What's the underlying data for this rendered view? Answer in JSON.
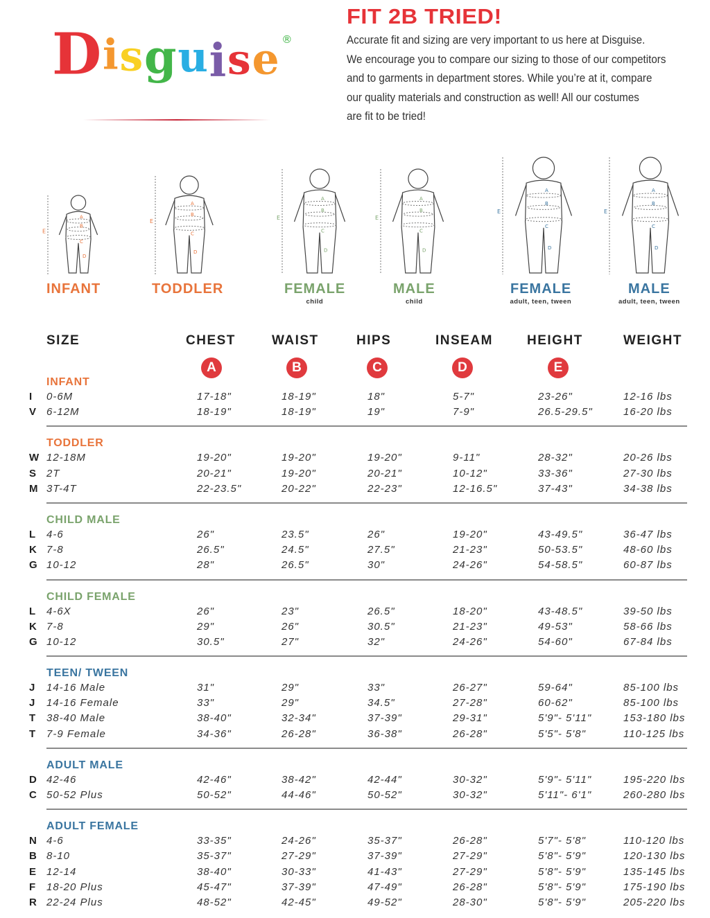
{
  "brand": {
    "logo_text": "Disguise",
    "logo_letters": [
      "D",
      "i",
      "s",
      "g",
      "u",
      "i",
      "s",
      "e"
    ],
    "logo_colors": [
      "#e63338",
      "#f4972f",
      "#f9d023",
      "#43b649",
      "#29aee3",
      "#7a5ca8",
      "#e63338",
      "#f4972f"
    ],
    "registered": "®"
  },
  "headline": "FIT 2B TRIED!",
  "intro_lines": [
    "Accurate fit and sizing are very important to us here at Disguise.",
    "We encourage you to compare our sizing to those of our competitors",
    "and to garments in department stores. While you’re at it, compare",
    "our quality materials and construction as well! All our costumes",
    "are fit to be tried!"
  ],
  "colors": {
    "orange": "#e8743b",
    "green": "#7aa36c",
    "blue": "#3a75a0",
    "red": "#e03a3e"
  },
  "figures": [
    {
      "label": "INFANT",
      "sub": "",
      "color": "#e8743b"
    },
    {
      "label": "TODDLER",
      "sub": "",
      "color": "#e8743b"
    },
    {
      "label": "FEMALE",
      "sub": "child",
      "color": "#7aa36c"
    },
    {
      "label": "MALE",
      "sub": "child",
      "color": "#7aa36c"
    },
    {
      "label": "FEMALE",
      "sub": "adult, teen, tween",
      "color": "#3a75a0"
    },
    {
      "label": "MALE",
      "sub": "adult, teen, tween",
      "color": "#3a75a0"
    }
  ],
  "columns": [
    {
      "label": "SIZE",
      "marker": ""
    },
    {
      "label": "CHEST",
      "marker": "A"
    },
    {
      "label": "WAIST",
      "marker": "B"
    },
    {
      "label": "HIPS",
      "marker": "C"
    },
    {
      "label": "INSEAM",
      "marker": "D"
    },
    {
      "label": "HEIGHT",
      "marker": "E"
    },
    {
      "label": "WEIGHT",
      "marker": ""
    }
  ],
  "sections": [
    {
      "title": "INFANT",
      "color": "#e8743b",
      "rows": [
        [
          "I",
          "0-6M",
          "17-18\"",
          "18-19\"",
          "18\"",
          "5-7\"",
          "23-26\"",
          "12-16 lbs"
        ],
        [
          "V",
          "6-12M",
          "18-19\"",
          "18-19\"",
          "19\"",
          "7-9\"",
          "26.5-29.5\"",
          "16-20 lbs"
        ]
      ]
    },
    {
      "title": "TODDLER",
      "color": "#e8743b",
      "rows": [
        [
          "W",
          "12-18M",
          "19-20\"",
          "19-20\"",
          "19-20\"",
          "9-11\"",
          "28-32\"",
          "20-26 lbs"
        ],
        [
          "S",
          "2T",
          "20-21\"",
          "19-20\"",
          "20-21\"",
          "10-12\"",
          "33-36\"",
          "27-30 lbs"
        ],
        [
          "M",
          "3T-4T",
          "22-23.5\"",
          "20-22\"",
          "22-23\"",
          "12-16.5\"",
          "37-43\"",
          "34-38 lbs"
        ]
      ]
    },
    {
      "title": "CHILD MALE",
      "color": "#7aa36c",
      "rows": [
        [
          "L",
          "4-6",
          "26\"",
          "23.5\"",
          "26\"",
          "19-20\"",
          "43-49.5\"",
          "36-47 lbs"
        ],
        [
          "K",
          "7-8",
          "26.5\"",
          "24.5\"",
          "27.5\"",
          "21-23\"",
          "50-53.5\"",
          "48-60 lbs"
        ],
        [
          "G",
          "10-12",
          "28\"",
          "26.5\"",
          "30\"",
          "24-26\"",
          "54-58.5\"",
          "60-87 lbs"
        ]
      ]
    },
    {
      "title": "CHILD FEMALE",
      "color": "#7aa36c",
      "rows": [
        [
          "L",
          "4-6X",
          "26\"",
          "23\"",
          "26.5\"",
          "18-20\"",
          "43-48.5\"",
          "39-50 lbs"
        ],
        [
          "K",
          "7-8",
          "29\"",
          "26\"",
          "30.5\"",
          "21-23\"",
          "49-53\"",
          "58-66 lbs"
        ],
        [
          "G",
          "10-12",
          "30.5\"",
          "27\"",
          "32\"",
          "24-26\"",
          "54-60\"",
          "67-84 lbs"
        ]
      ]
    },
    {
      "title": "TEEN/ TWEEN",
      "color": "#3a75a0",
      "rows": [
        [
          "J",
          "14-16 Male",
          "31\"",
          "29\"",
          "33\"",
          "26-27\"",
          "59-64\"",
          "85-100 lbs"
        ],
        [
          "J",
          "14-16 Female",
          "33\"",
          "29\"",
          "34.5\"",
          "27-28\"",
          "60-62\"",
          "85-100 lbs"
        ],
        [
          "T",
          "38-40 Male",
          "38-40\"",
          "32-34\"",
          "37-39\"",
          "29-31\"",
          "5'9\"- 5'11\"",
          "153-180 lbs"
        ],
        [
          "T",
          "7-9 Female",
          "34-36\"",
          "26-28\"",
          "36-38\"",
          "26-28\"",
          "5'5\"- 5'8\"",
          "110-125 lbs"
        ]
      ]
    },
    {
      "title": "ADULT MALE",
      "color": "#3a75a0",
      "rows": [
        [
          "D",
          "42-46",
          "42-46\"",
          "38-42\"",
          "42-44\"",
          "30-32\"",
          "5'9\"- 5'11\"",
          "195-220 lbs"
        ],
        [
          "C",
          "50-52 Plus",
          "50-52\"",
          "44-46\"",
          "50-52\"",
          "30-32\"",
          "5'11\"- 6'1\"",
          "260-280 lbs"
        ]
      ]
    },
    {
      "title": "ADULT FEMALE",
      "color": "#3a75a0",
      "rows": [
        [
          "N",
          "4-6",
          "33-35\"",
          "24-26\"",
          "35-37\"",
          "26-28\"",
          "5'7\"- 5'8\"",
          "110-120 lbs"
        ],
        [
          "B",
          "8-10",
          "35-37\"",
          "27-29\"",
          "37-39\"",
          "27-29\"",
          "5'8\"- 5'9\"",
          "120-130 lbs"
        ],
        [
          "E",
          "12-14",
          "38-40\"",
          "30-33\"",
          "41-43\"",
          "27-29\"",
          "5'8\"- 5'9\"",
          "135-145 lbs"
        ],
        [
          "F",
          "18-20 Plus",
          "45-47\"",
          "37-39\"",
          "47-49\"",
          "26-28\"",
          "5'8\"- 5'9\"",
          "175-190 lbs"
        ],
        [
          "R",
          "22-24 Plus",
          "48-52\"",
          "42-45\"",
          "49-52\"",
          "28-30\"",
          "5'8\"- 5'9\"",
          "205-220 lbs"
        ]
      ]
    }
  ]
}
